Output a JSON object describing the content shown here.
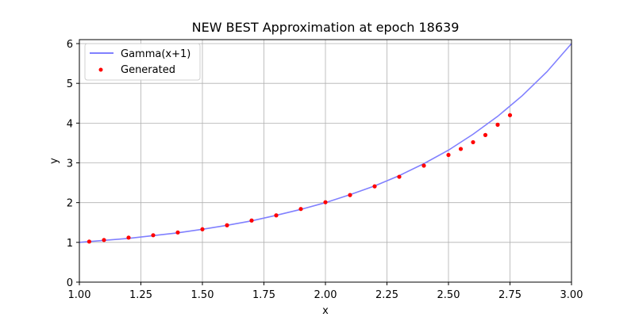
{
  "chart_data": {
    "type": "line",
    "title": "NEW BEST Approximation at epoch 18639",
    "xlabel": "x",
    "ylabel": "y",
    "xlim": [
      1.0,
      3.0
    ],
    "ylim": [
      0,
      6.1
    ],
    "xticks": [
      "1.00",
      "1.25",
      "1.50",
      "1.75",
      "2.00",
      "2.25",
      "2.50",
      "2.75",
      "3.00"
    ],
    "yticks": [
      "0",
      "1",
      "2",
      "3",
      "4",
      "5",
      "6"
    ],
    "grid": true,
    "legend_position": "top-left",
    "series": [
      {
        "name": "Gamma(x+1)",
        "kind": "line",
        "color": "#8080ff",
        "x": [
          1.0,
          1.1,
          1.2,
          1.3,
          1.4,
          1.5,
          1.6,
          1.7,
          1.8,
          1.9,
          2.0,
          2.1,
          2.2,
          2.3,
          2.4,
          2.5,
          2.6,
          2.7,
          2.8,
          2.9,
          3.0
        ],
        "y": [
          1.0,
          1.05,
          1.1,
          1.17,
          1.24,
          1.33,
          1.43,
          1.54,
          1.68,
          1.83,
          2.0,
          2.2,
          2.42,
          2.68,
          2.98,
          3.32,
          3.72,
          4.17,
          4.69,
          5.29,
          6.0
        ]
      },
      {
        "name": "Generated",
        "kind": "scatter",
        "color": "#ff0000",
        "x": [
          1.04,
          1.1,
          1.2,
          1.3,
          1.4,
          1.5,
          1.6,
          1.7,
          1.8,
          1.9,
          2.0,
          2.1,
          2.2,
          2.3,
          2.4,
          2.5,
          2.55,
          2.6,
          2.65,
          2.7,
          2.75
        ],
        "y": [
          1.02,
          1.06,
          1.12,
          1.18,
          1.25,
          1.33,
          1.43,
          1.55,
          1.68,
          1.84,
          2.01,
          2.19,
          2.41,
          2.65,
          2.93,
          3.2,
          3.35,
          3.52,
          3.7,
          3.96,
          4.2
        ]
      }
    ]
  }
}
